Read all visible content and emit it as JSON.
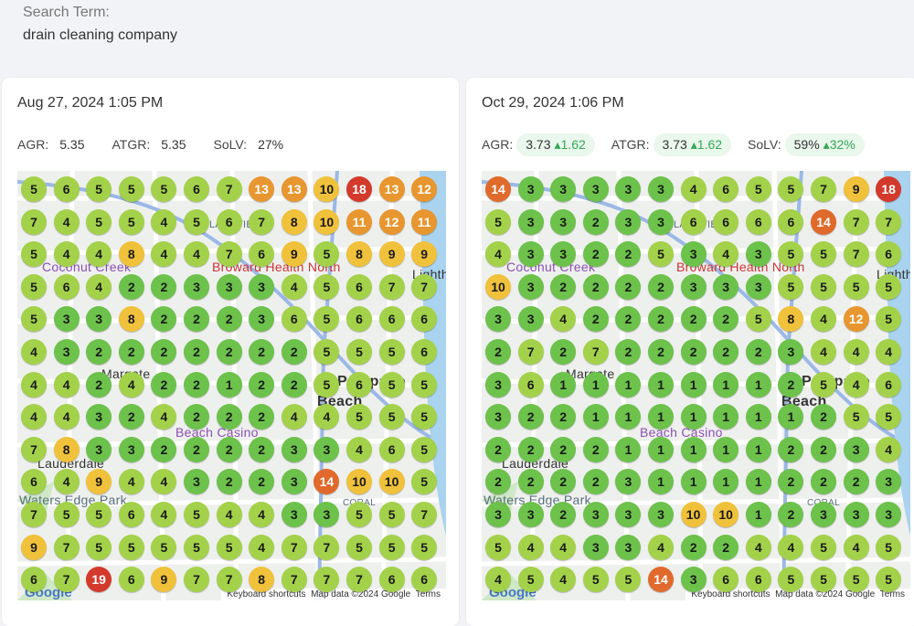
{
  "search": {
    "label": "Search Term:",
    "value": "drain cleaning company"
  },
  "map_labels": {
    "lakeview": "LAKEVIEW",
    "coconut_creek": "Coconut Creek",
    "broward_health": "Broward Health North",
    "margate": "Margate",
    "pompano": "Pompano",
    "beach": "Beach",
    "casino": "Beach Casino",
    "lauderdale": "Lauderdale",
    "waters_edge": "Waters Edge Park",
    "lighth": "Lighth",
    "coral": "CORAL"
  },
  "scans": [
    {
      "date": "Aug 27, 2024 1:05 PM",
      "metrics": {
        "agr_label": "AGR:",
        "agr": "5.35",
        "atgr_label": "ATGR:",
        "atgr": "5.35",
        "solv_label": "SoLV:",
        "solv": "27%"
      },
      "grid": [
        [
          5,
          6,
          5,
          5,
          5,
          6,
          7,
          13,
          13,
          10,
          18,
          13,
          12
        ],
        [
          7,
          4,
          5,
          5,
          4,
          5,
          6,
          7,
          8,
          10,
          11,
          12,
          11
        ],
        [
          5,
          4,
          4,
          8,
          4,
          4,
          7,
          6,
          9,
          5,
          8,
          9,
          9
        ],
        [
          5,
          6,
          4,
          2,
          2,
          3,
          3,
          3,
          4,
          5,
          6,
          7,
          7
        ],
        [
          5,
          3,
          3,
          8,
          2,
          2,
          2,
          3,
          6,
          5,
          6,
          6,
          6
        ],
        [
          4,
          3,
          2,
          2,
          2,
          2,
          2,
          2,
          2,
          5,
          5,
          5,
          6
        ],
        [
          4,
          4,
          2,
          4,
          2,
          2,
          1,
          2,
          2,
          5,
          6,
          5,
          5
        ],
        [
          4,
          4,
          3,
          2,
          4,
          2,
          2,
          2,
          4,
          4,
          5,
          5,
          5
        ],
        [
          7,
          8,
          3,
          3,
          2,
          2,
          2,
          2,
          3,
          3,
          4,
          6,
          5
        ],
        [
          6,
          4,
          9,
          4,
          4,
          3,
          2,
          2,
          3,
          14,
          10,
          10,
          5
        ],
        [
          7,
          5,
          5,
          6,
          4,
          5,
          4,
          4,
          3,
          3,
          5,
          5,
          7
        ],
        [
          9,
          7,
          5,
          5,
          5,
          5,
          5,
          4,
          7,
          7,
          5,
          5,
          5
        ],
        [
          6,
          7,
          19,
          6,
          9,
          7,
          7,
          8,
          7,
          7,
          7,
          6,
          6
        ]
      ],
      "footer": {
        "google": "Google",
        "shortcuts": "Keyboard shortcuts",
        "mapdata": "Map data ©2024 Google",
        "terms": "Terms"
      }
    },
    {
      "date": "Oct 29, 2024 1:06 PM",
      "metrics": {
        "agr_label": "AGR:",
        "agr": "3.73",
        "agr_delta": "1.62",
        "atgr_label": "ATGR:",
        "atgr": "3.73",
        "atgr_delta": "1.62",
        "solv_label": "SoLV:",
        "solv": "59%",
        "solv_delta": "32%"
      },
      "grid": [
        [
          14,
          3,
          3,
          3,
          3,
          3,
          4,
          6,
          5,
          5,
          7,
          9,
          18
        ],
        [
          5,
          3,
          3,
          2,
          3,
          3,
          6,
          6,
          6,
          6,
          14,
          7,
          7
        ],
        [
          4,
          3,
          3,
          2,
          2,
          5,
          3,
          4,
          3,
          5,
          5,
          7,
          6
        ],
        [
          10,
          3,
          2,
          2,
          2,
          2,
          3,
          3,
          3,
          5,
          5,
          5,
          5
        ],
        [
          3,
          3,
          4,
          2,
          2,
          2,
          2,
          2,
          5,
          8,
          4,
          12,
          5
        ],
        [
          2,
          7,
          2,
          7,
          2,
          2,
          2,
          2,
          2,
          3,
          4,
          4,
          4
        ],
        [
          3,
          6,
          1,
          1,
          1,
          1,
          1,
          1,
          1,
          2,
          5,
          4,
          6
        ],
        [
          3,
          2,
          2,
          1,
          1,
          1,
          1,
          1,
          1,
          1,
          2,
          5,
          5
        ],
        [
          2,
          2,
          2,
          2,
          1,
          1,
          1,
          1,
          1,
          2,
          2,
          3,
          4
        ],
        [
          2,
          2,
          2,
          2,
          3,
          1,
          1,
          1,
          1,
          2,
          2,
          2,
          3
        ],
        [
          3,
          3,
          2,
          3,
          3,
          3,
          10,
          10,
          1,
          2,
          3,
          3,
          3
        ],
        [
          5,
          4,
          4,
          3,
          3,
          4,
          2,
          2,
          4,
          4,
          5,
          4,
          5
        ],
        [
          4,
          5,
          4,
          5,
          5,
          14,
          3,
          6,
          6,
          5,
          5,
          5,
          5
        ]
      ],
      "footer": {
        "google": "Google",
        "shortcuts": "Keyboard shortcuts",
        "mapdata": "Map data ©2024 Google",
        "terms": "Terms"
      }
    }
  ],
  "colors": {
    "rank_1_3": "#6cc24a",
    "rank_4_7": "#a3d24a",
    "rank_8_10": "#f0c13a",
    "rank_11_13": "#e8962f",
    "rank_14_16": "#e06a2c",
    "rank_17_plus": "#d33a2c",
    "delta_up": "#33a852"
  }
}
